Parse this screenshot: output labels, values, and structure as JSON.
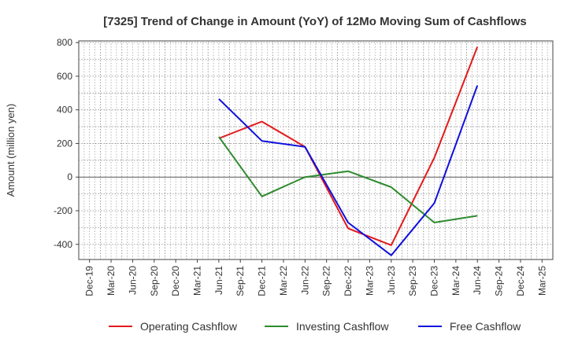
{
  "chart_data": {
    "type": "line",
    "title": "[7325]  Trend of Change in Amount (YoY) of 12Mo Moving Sum of Cashflows",
    "xlabel": "",
    "ylabel": "Amount (million yen)",
    "categories": [
      "Dec-19",
      "Mar-20",
      "Jun-20",
      "Sep-20",
      "Dec-20",
      "Mar-21",
      "Jun-21",
      "Sep-21",
      "Dec-21",
      "Mar-22",
      "Jun-22",
      "Sep-22",
      "Dec-22",
      "Mar-23",
      "Jun-23",
      "Sep-23",
      "Dec-23",
      "Mar-24",
      "Jun-24",
      "Sep-24",
      "Dec-24",
      "Mar-25"
    ],
    "ylim": [
      -490,
      810
    ],
    "yticks": [
      -400,
      -200,
      0,
      200,
      400,
      600,
      800
    ],
    "yticks_labels": [
      "-400",
      "-200",
      "0",
      "200",
      "400",
      "600",
      "800"
    ],
    "grid": true,
    "legend_position": "bottom",
    "series": [
      {
        "name": "Operating Cashflow",
        "color": "#e31a1c",
        "values": [
          null,
          null,
          null,
          null,
          null,
          null,
          230,
          null,
          330,
          null,
          180,
          null,
          -305,
          null,
          -405,
          null,
          115,
          null,
          775,
          null,
          null,
          null
        ]
      },
      {
        "name": "Investing Cashflow",
        "color": "#2e8b2e",
        "values": [
          null,
          null,
          null,
          null,
          null,
          null,
          240,
          null,
          -115,
          null,
          0,
          null,
          35,
          null,
          -60,
          null,
          -270,
          null,
          -230,
          null,
          null,
          null
        ]
      },
      {
        "name": "Free Cashflow",
        "color": "#1010dd",
        "values": [
          null,
          null,
          null,
          null,
          null,
          null,
          465,
          null,
          215,
          null,
          180,
          null,
          -270,
          null,
          -465,
          null,
          -155,
          null,
          545,
          null,
          null,
          null
        ]
      }
    ]
  }
}
